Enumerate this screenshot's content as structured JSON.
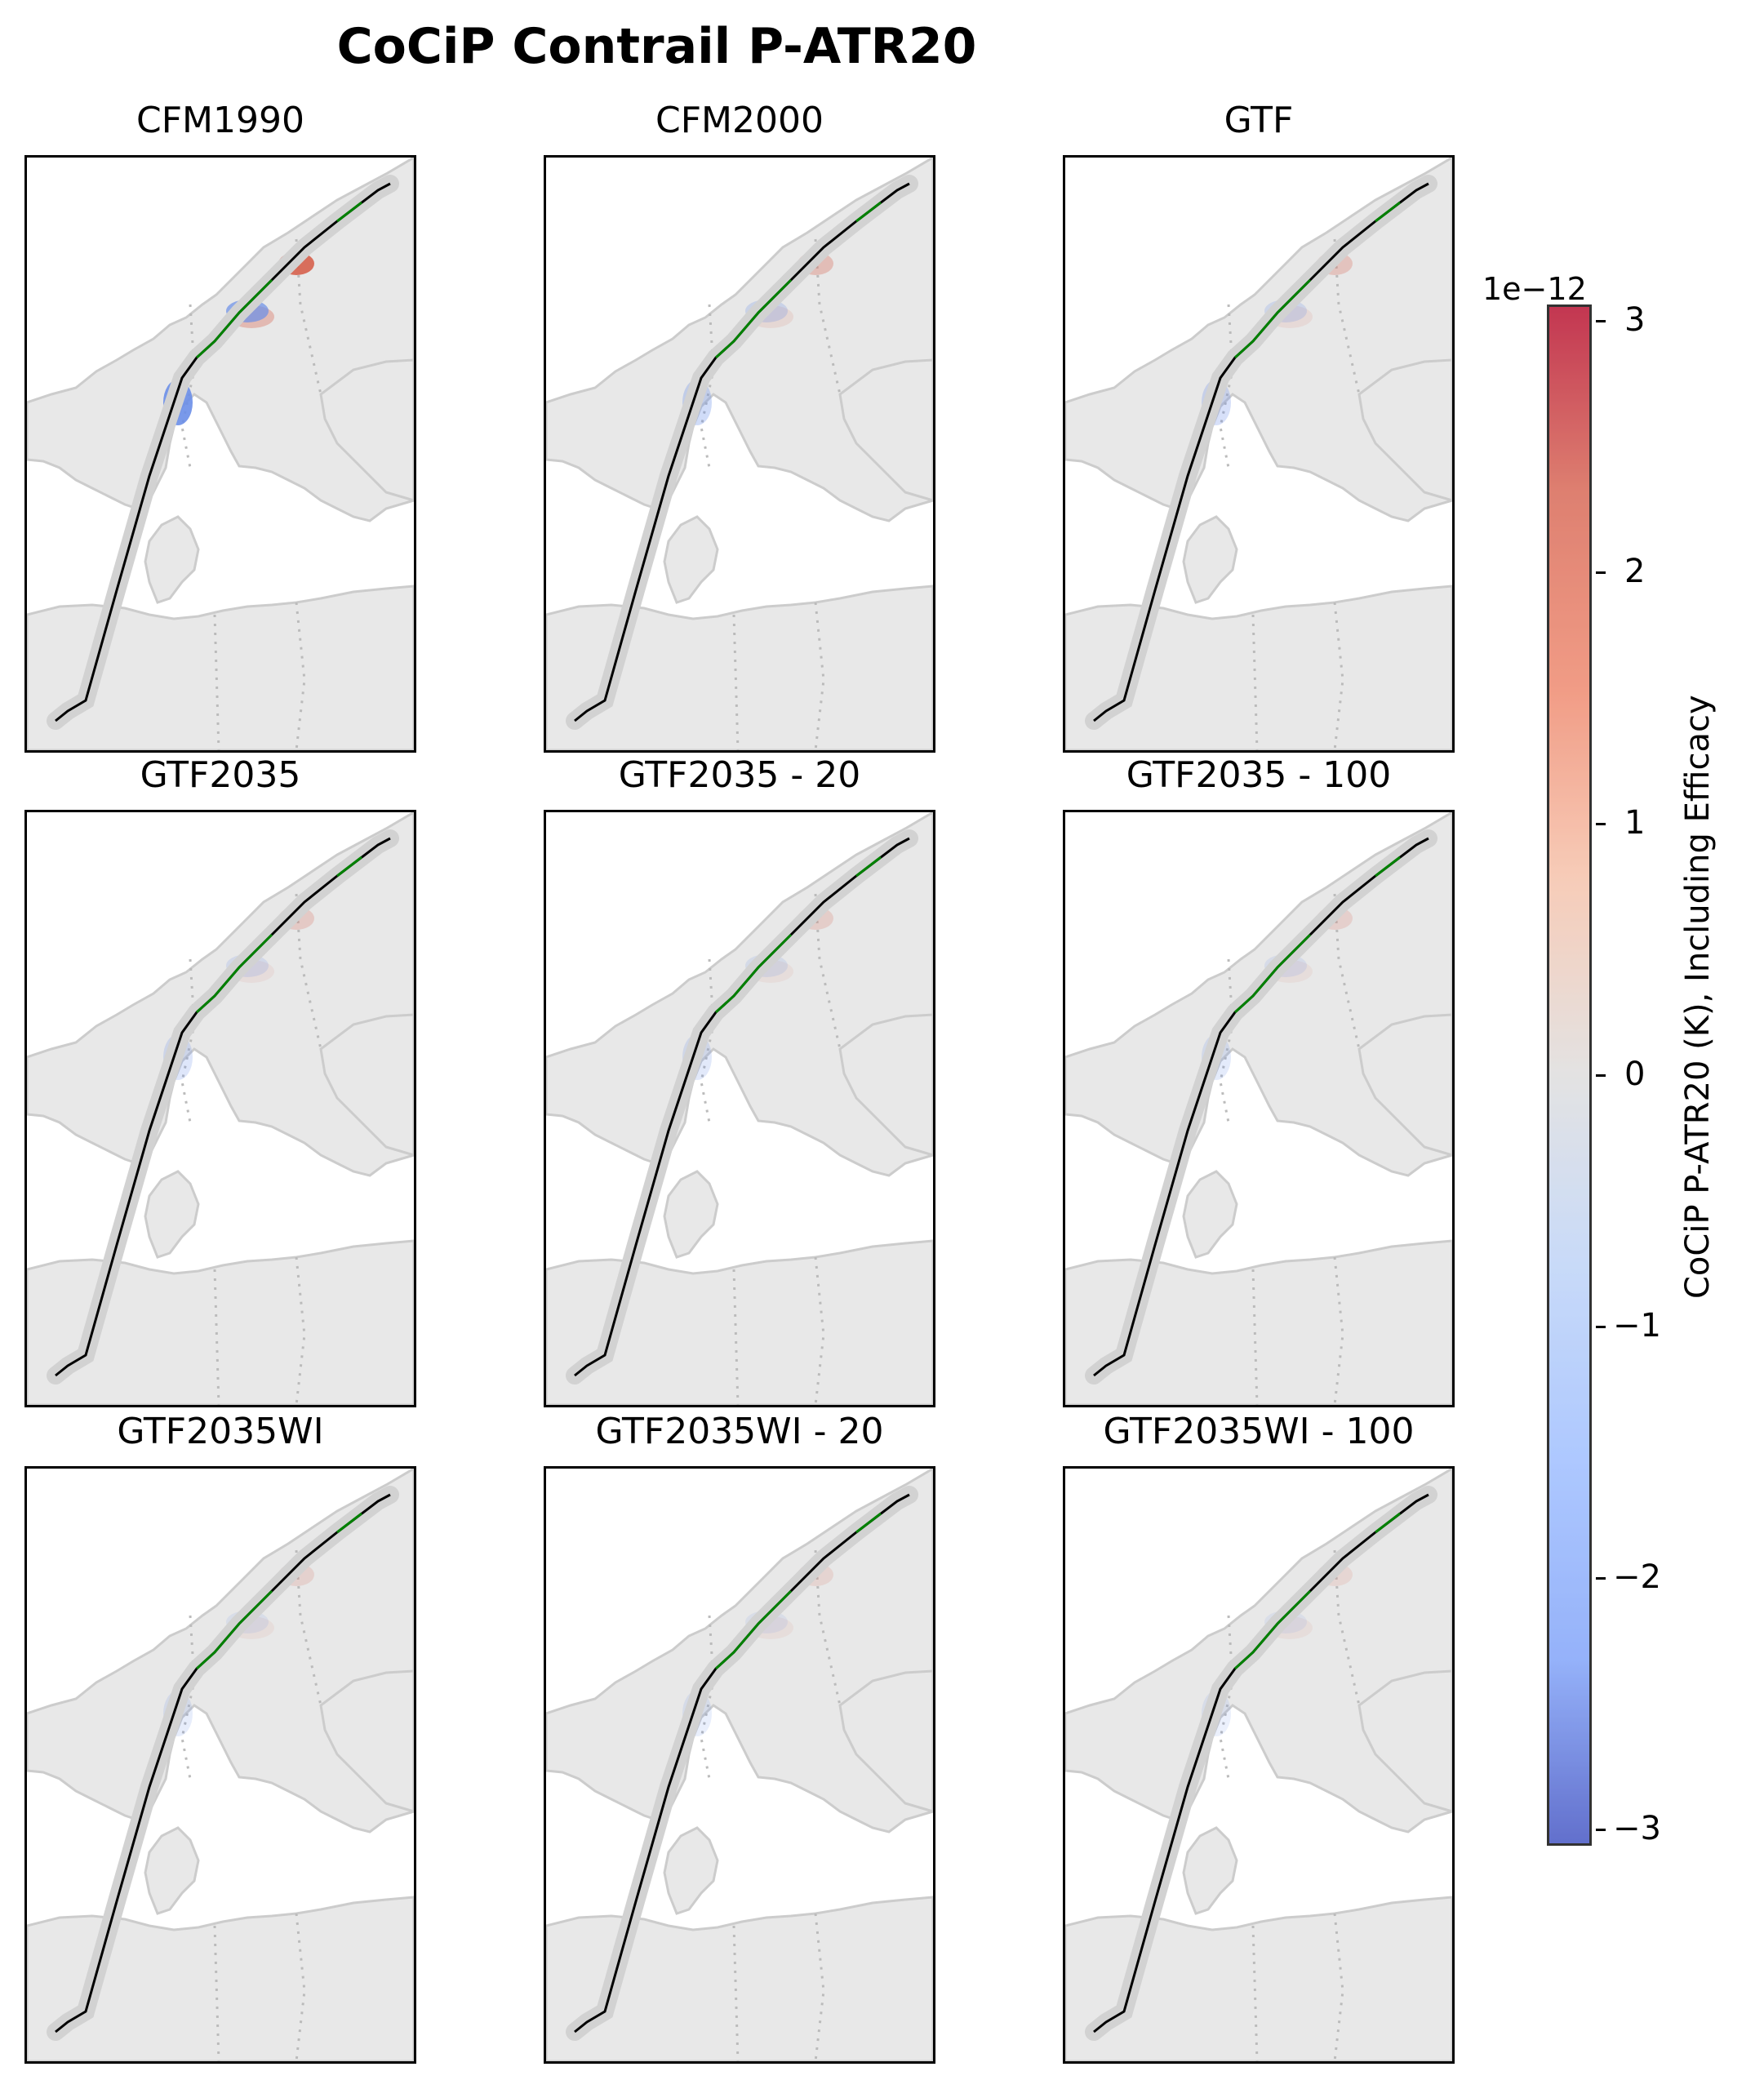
{
  "figure": {
    "title": "CoCiP Contrail P-ATR20",
    "panels": [
      {
        "title": "CFM1990",
        "intensity": 1.0
      },
      {
        "title": "CFM2000",
        "intensity": 0.35
      },
      {
        "title": "GTF",
        "intensity": 0.3
      },
      {
        "title": "GTF2035",
        "intensity": 0.25
      },
      {
        "title": "GTF2035 - 20",
        "intensity": 0.22
      },
      {
        "title": "GTF2035 - 100",
        "intensity": 0.2
      },
      {
        "title": "GTF2035WI",
        "intensity": 0.18
      },
      {
        "title": "GTF2035WI - 20",
        "intensity": 0.16
      },
      {
        "title": "GTF2035WI - 100",
        "intensity": 0.15
      }
    ]
  },
  "colorbar": {
    "label": "CoCiP P-ATR20 (K), Including Efficacy",
    "exponent": "1e−12",
    "ticks": [
      "3",
      "2",
      "1",
      "0",
      "−1",
      "−2",
      "−3"
    ],
    "range": [
      -3,
      3
    ],
    "colormap": "coolwarm"
  },
  "colors": {
    "land": "#e8e8e8",
    "coast": "#cccccc",
    "border": "#bbbbbb",
    "track": "#000000",
    "track_green": "#008000",
    "positive": "#d6604d",
    "negative": "#6a8ee8"
  }
}
